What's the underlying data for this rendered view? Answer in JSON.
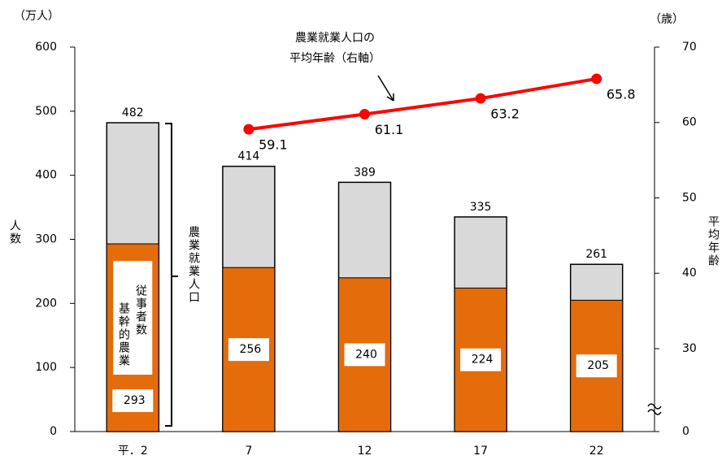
{
  "chart_data": {
    "type": "bar-line",
    "categories": [
      "平．2",
      "7",
      "12",
      "17",
      "22"
    ],
    "series": [
      {
        "name": "農業就業人口",
        "color": "#d9d9d9",
        "values": [
          482,
          414,
          389,
          335,
          261
        ]
      },
      {
        "label_lines": [
          "基幹的農業",
          "従事者数"
        ],
        "color": "#e46c0a",
        "values": [
          293,
          256,
          240,
          224,
          205
        ]
      },
      {
        "label_lines": [
          "農業就業人口の",
          "平均年齢（右軸）"
        ],
        "color": "#ff0000",
        "axis": "y2",
        "values": [
          null,
          59.1,
          61.1,
          63.2,
          65.8
        ]
      }
    ],
    "y_unit": "（万人）",
    "ylabel": "人数",
    "ylim": [
      0,
      600
    ],
    "yticks": [
      0,
      100,
      200,
      300,
      400,
      500,
      600
    ],
    "y2_unit": "（歳）",
    "y2label": "平均年齢",
    "y2lim": [
      0,
      70
    ],
    "y2ticks": [
      0,
      30,
      40,
      50,
      60,
      70
    ],
    "y2_break": true
  }
}
